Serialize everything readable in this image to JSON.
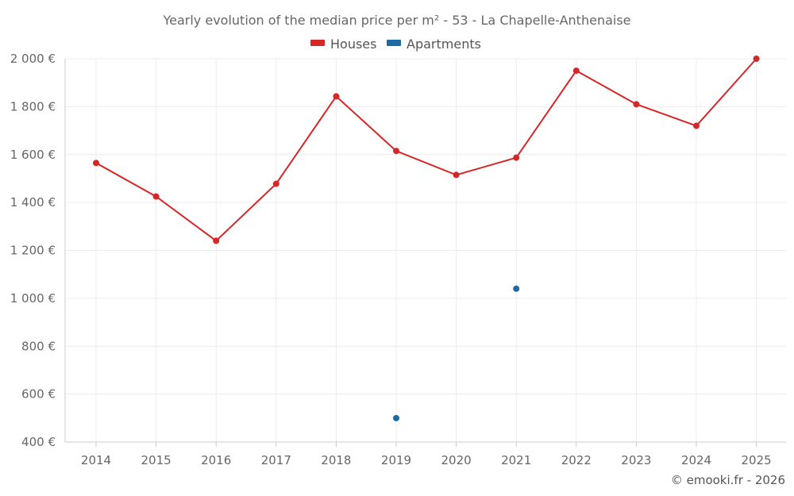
{
  "chart_data": {
    "type": "line",
    "title": "Yearly evolution of the median price per m² - 53 - La Chapelle-Anthenaise",
    "categories": [
      "2014",
      "2015",
      "2016",
      "2017",
      "2018",
      "2019",
      "2020",
      "2021",
      "2022",
      "2023",
      "2024",
      "2025"
    ],
    "ylim": [
      400,
      2000
    ],
    "yticks": [
      400,
      600,
      800,
      1000,
      1200,
      1400,
      1600,
      1800,
      2000
    ],
    "ytick_labels": [
      "400 €",
      "600 €",
      "800 €",
      "1 000 €",
      "1 200 €",
      "1 400 €",
      "1 600 €",
      "1 800 €",
      "2 000 €"
    ],
    "grid": true,
    "legend_position": "top-center",
    "series": [
      {
        "name": "Houses",
        "color": "#d62728",
        "values": [
          1565,
          1425,
          1240,
          1478,
          1843,
          1615,
          1515,
          1587,
          1950,
          1810,
          1720,
          2000
        ]
      },
      {
        "name": "Apartments",
        "color": "#1f6aa5",
        "values": [
          null,
          null,
          null,
          null,
          null,
          500,
          null,
          1040,
          null,
          null,
          null,
          null
        ]
      }
    ],
    "credit": "© emooki.fr - 2026"
  }
}
